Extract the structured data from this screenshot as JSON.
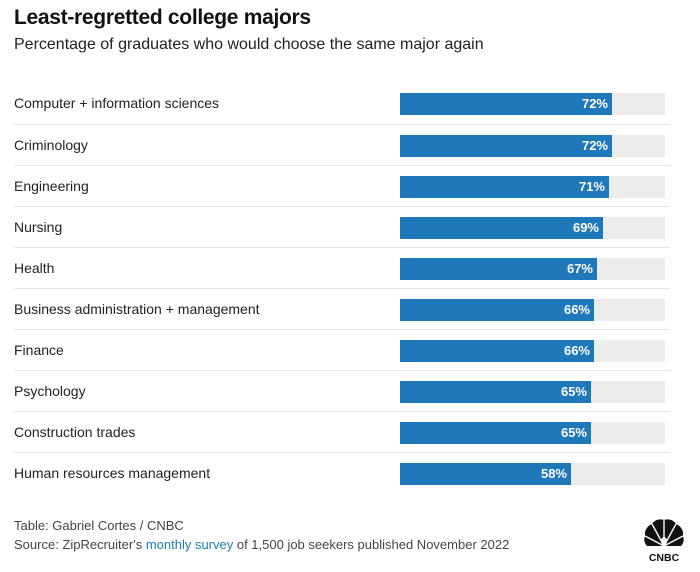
{
  "header": {
    "title": "Least-regretted college majors",
    "subtitle": "Percentage of graduates who would choose the same major again"
  },
  "chart_data": {
    "type": "bar",
    "orientation": "horizontal",
    "categories": [
      "Computer + information sciences",
      "Criminology",
      "Engineering",
      "Nursing",
      "Health",
      "Business administration + management",
      "Finance",
      "Psychology",
      "Construction trades",
      "Human resources management"
    ],
    "values": [
      72,
      72,
      71,
      69,
      67,
      66,
      66,
      65,
      65,
      58
    ],
    "value_labels": [
      "72%",
      "72%",
      "71%",
      "69%",
      "67%",
      "66%",
      "66%",
      "65%",
      "65%",
      "58%"
    ],
    "xlim": [
      0,
      90
    ],
    "bar_color": "#1f78b9",
    "track_color": "#ececec",
    "grid": false
  },
  "footer": {
    "credit": "Table: Gabriel Cortes / CNBC",
    "source_prefix": "Source: ZipRecruiter's ",
    "source_link": "monthly survey",
    "source_suffix": " of 1,500 job seekers published November 2022",
    "link_color": "#1a7fb0"
  },
  "logo": {
    "text": "CNBC",
    "icon": "peacock-icon"
  }
}
